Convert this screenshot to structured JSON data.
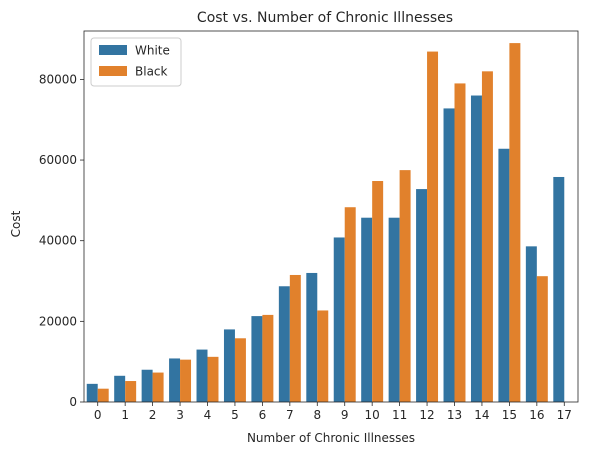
{
  "chart_data": {
    "type": "bar",
    "title": "Cost vs. Number of Chronic Illnesses",
    "xlabel": "Number of Chronic Illnesses",
    "ylabel": "Cost",
    "categories": [
      "0",
      "1",
      "2",
      "3",
      "4",
      "5",
      "6",
      "7",
      "8",
      "9",
      "10",
      "11",
      "12",
      "13",
      "14",
      "15",
      "16",
      "17"
    ],
    "ylim": [
      0,
      92000
    ],
    "yticks": [
      0,
      20000,
      40000,
      60000,
      80000
    ],
    "ytick_labels": [
      "0",
      "20000",
      "40000",
      "60000",
      "80000"
    ],
    "legend_position": "top-left",
    "grid": false,
    "series": [
      {
        "name": "White",
        "color": "#3274a1",
        "values": [
          4500,
          6500,
          8000,
          10800,
          13000,
          18000,
          21300,
          28700,
          32000,
          40800,
          45700,
          45700,
          52800,
          72800,
          76000,
          62800,
          38600,
          55800
        ]
      },
      {
        "name": "Black",
        "color": "#e1812c",
        "values": [
          3300,
          5200,
          7300,
          10500,
          11200,
          15800,
          21600,
          31500,
          22700,
          48300,
          54800,
          57500,
          86900,
          79000,
          82000,
          89000,
          31200,
          null
        ]
      }
    ]
  }
}
